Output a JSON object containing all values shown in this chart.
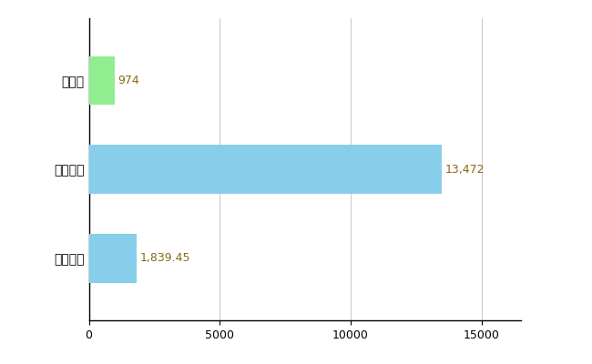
{
  "categories": [
    "三重県",
    "全国最大",
    "全国平均"
  ],
  "values": [
    974,
    13472,
    1839.45
  ],
  "bar_colors": [
    "#90EE90",
    "#87CEEB",
    "#87CEEB"
  ],
  "value_labels": [
    "974",
    "13,472",
    "1,839.45"
  ],
  "xlim": [
    0,
    16500
  ],
  "xticks": [
    0,
    5000,
    10000,
    15000
  ],
  "xtick_labels": [
    "0",
    "5000",
    "10000",
    "15000"
  ],
  "background_color": "#ffffff",
  "grid_color": "#cccccc",
  "bar_height": 0.55,
  "label_fontsize": 10,
  "tick_fontsize": 9,
  "value_label_color": "#8B6914",
  "value_label_fontsize": 9
}
